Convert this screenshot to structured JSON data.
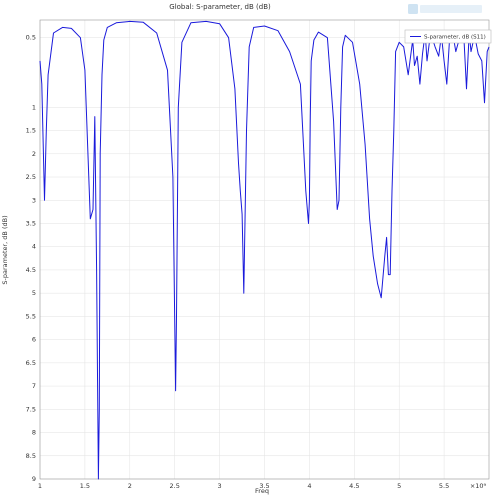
{
  "chart_data": {
    "type": "line",
    "title": "Global: S-parameter, dB (dB)",
    "xlabel": "Freq",
    "ylabel": "S-parameter, dB (dB)",
    "x_multiplier": "×10⁹",
    "xlim": [
      1.0,
      6.0
    ],
    "ylim": [
      -9.0,
      0.88
    ],
    "x_ticks": [
      "1",
      "1.5",
      "2",
      "2.5",
      "3",
      "3.5",
      "4",
      "4.5",
      "5",
      "5.5",
      "×10⁹"
    ],
    "y_ticks": [
      "0.5",
      "1",
      "1.5",
      "2",
      "2.5",
      "3",
      "3.5",
      "4",
      "4.5",
      "5",
      "5.5",
      "6",
      "6.5",
      "7",
      "7.5",
      "8",
      "8.5",
      "9"
    ],
    "grid": true,
    "legend_position": "top-right",
    "series": [
      {
        "name": "S-parameter, dB (S11)",
        "color": "#1a1adb",
        "x": [
          1.0,
          1.02,
          1.05,
          1.07,
          1.09,
          1.15,
          1.25,
          1.35,
          1.45,
          1.5,
          1.53,
          1.56,
          1.59,
          1.61,
          1.63,
          1.65,
          1.66,
          1.67,
          1.69,
          1.71,
          1.75,
          1.85,
          2.0,
          2.15,
          2.3,
          2.42,
          2.48,
          2.51,
          2.52,
          2.54,
          2.58,
          2.68,
          2.85,
          3.0,
          3.1,
          3.17,
          3.21,
          3.23,
          3.25,
          3.27,
          3.3,
          3.33,
          3.38,
          3.5,
          3.65,
          3.78,
          3.9,
          3.96,
          3.99,
          4.0,
          4.01,
          4.02,
          4.05,
          4.1,
          4.2,
          4.27,
          4.31,
          4.33,
          4.35,
          4.37,
          4.4,
          4.48,
          4.56,
          4.62,
          4.67,
          4.71,
          4.76,
          4.8,
          4.84,
          4.86,
          4.88,
          4.9,
          4.92,
          4.94,
          4.96,
          5.0,
          5.05,
          5.1,
          5.15,
          5.17,
          5.2,
          5.23,
          5.26,
          5.29,
          5.31,
          5.35,
          5.4,
          5.44,
          5.47,
          5.5,
          5.53,
          5.56,
          5.6,
          5.63,
          5.68,
          5.72,
          5.75,
          5.78,
          5.8,
          5.84,
          5.88,
          5.92,
          5.95,
          5.98,
          6.0
        ],
        "y": [
          0.0,
          -0.5,
          -3.0,
          -1.5,
          -0.3,
          0.6,
          0.72,
          0.7,
          0.5,
          -0.2,
          -1.8,
          -3.4,
          -3.2,
          -1.2,
          -4.5,
          -9.0,
          -7.5,
          -2.0,
          -0.3,
          0.45,
          0.72,
          0.82,
          0.85,
          0.83,
          0.6,
          -0.2,
          -2.5,
          -7.1,
          -5.5,
          -1.0,
          0.4,
          0.82,
          0.85,
          0.8,
          0.5,
          -0.6,
          -2.2,
          -2.8,
          -3.3,
          -5.0,
          -1.5,
          0.3,
          0.72,
          0.75,
          0.65,
          0.2,
          -0.5,
          -2.8,
          -3.5,
          -3.0,
          -1.2,
          0.0,
          0.45,
          0.62,
          0.5,
          -1.3,
          -3.2,
          -3.0,
          -1.0,
          0.3,
          0.55,
          0.4,
          -0.5,
          -1.8,
          -3.4,
          -4.2,
          -4.8,
          -5.1,
          -4.2,
          -3.8,
          -4.6,
          -4.6,
          -2.8,
          -1.5,
          0.2,
          0.4,
          0.3,
          -0.3,
          0.45,
          -0.1,
          0.1,
          -0.5,
          0.15,
          0.6,
          0.0,
          0.6,
          0.3,
          0.1,
          0.55,
          0.0,
          -0.5,
          0.45,
          0.55,
          0.2,
          0.55,
          0.5,
          -0.6,
          0.6,
          0.2,
          0.55,
          0.15,
          0.0,
          -0.9,
          0.2,
          0.3
        ]
      }
    ]
  }
}
